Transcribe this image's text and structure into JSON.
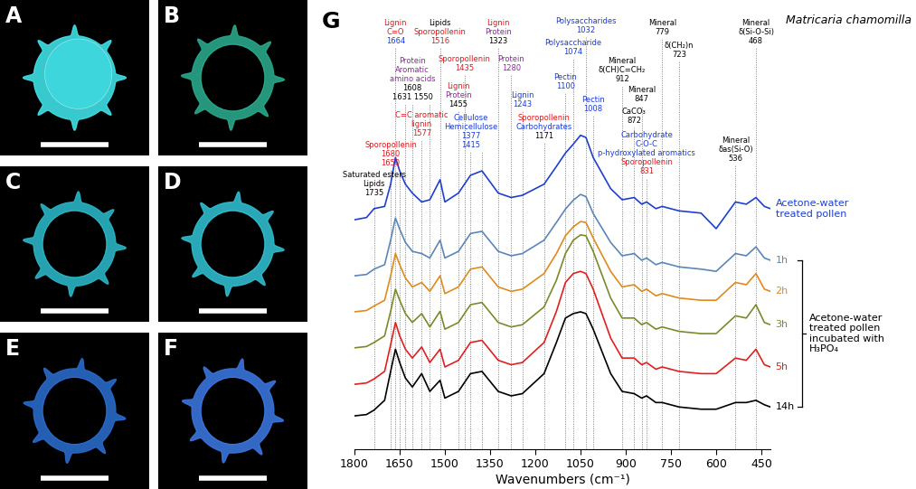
{
  "panels": {
    "labels": [
      "A",
      "B",
      "C",
      "D",
      "E",
      "F"
    ],
    "colors": [
      "#3fe0e6",
      "#2aa88a",
      "#2ab4c4",
      "#30bccc",
      "#2a6ac8",
      "#3a74dc"
    ]
  },
  "chart_data": {
    "type": "line",
    "panel_label": "G",
    "title": "Matricaria chamomilla",
    "xlabel": "Wavenumbers (cm⁻¹)",
    "xlim": [
      1800,
      420
    ],
    "xticks": [
      1800,
      1650,
      1500,
      1350,
      1200,
      1050,
      900,
      750,
      600,
      450
    ],
    "ylim": [
      0,
      10
    ],
    "tick_labels": "x",
    "x": [
      1800,
      1760,
      1735,
      1700,
      1680,
      1664,
      1650,
      1631,
      1608,
      1577,
      1550,
      1516,
      1500,
      1455,
      1435,
      1415,
      1377,
      1323,
      1280,
      1243,
      1171,
      1130,
      1100,
      1074,
      1050,
      1032,
      1008,
      950,
      912,
      872,
      847,
      831,
      800,
      779,
      723,
      650,
      600,
      536,
      500,
      468,
      440,
      420
    ],
    "series": [
      {
        "name": "Acetone-water treated pollen",
        "color": "#1f3fd0",
        "values": [
          5.16,
          5.21,
          5.41,
          5.46,
          5.96,
          6.56,
          6.26,
          5.96,
          5.76,
          5.56,
          5.61,
          6.06,
          5.56,
          5.76,
          5.96,
          6.16,
          6.26,
          5.76,
          5.66,
          5.71,
          5.96,
          6.36,
          6.66,
          6.86,
          7.06,
          7.01,
          6.56,
          5.86,
          5.61,
          5.66,
          5.51,
          5.56,
          5.41,
          5.46,
          5.36,
          5.31,
          4.96,
          5.56,
          5.51,
          5.66,
          5.46,
          5.41
        ]
      },
      {
        "name": "1h",
        "color": "#5b86b8",
        "values": [
          3.9,
          3.93,
          4.05,
          4.15,
          4.7,
          5.2,
          4.95,
          4.65,
          4.45,
          4.4,
          4.3,
          4.7,
          4.3,
          4.45,
          4.65,
          4.85,
          4.9,
          4.45,
          4.35,
          4.4,
          4.7,
          5.1,
          5.4,
          5.6,
          5.73,
          5.68,
          5.3,
          4.65,
          4.35,
          4.4,
          4.25,
          4.3,
          4.15,
          4.2,
          4.1,
          4.05,
          4.0,
          4.4,
          4.35,
          4.55,
          4.3,
          4.25
        ]
      },
      {
        "name": "2h",
        "color": "#e08a1e",
        "values": [
          3.09,
          3.12,
          3.22,
          3.35,
          3.9,
          4.4,
          4.15,
          3.85,
          3.65,
          3.75,
          3.55,
          3.9,
          3.5,
          3.65,
          3.85,
          4.05,
          4.1,
          3.65,
          3.55,
          3.6,
          3.95,
          4.4,
          4.8,
          5.0,
          5.12,
          5.1,
          4.75,
          4.0,
          3.65,
          3.7,
          3.55,
          3.6,
          3.45,
          3.5,
          3.4,
          3.35,
          3.35,
          3.75,
          3.7,
          3.95,
          3.6,
          3.55
        ]
      },
      {
        "name": "3h",
        "color": "#7a8a2a",
        "values": [
          2.28,
          2.31,
          2.4,
          2.55,
          3.1,
          3.6,
          3.35,
          3.05,
          2.85,
          3.05,
          2.75,
          3.1,
          2.7,
          2.85,
          3.05,
          3.25,
          3.3,
          2.85,
          2.75,
          2.8,
          3.2,
          3.8,
          4.4,
          4.7,
          4.82,
          4.8,
          4.45,
          3.4,
          2.95,
          2.95,
          2.8,
          2.85,
          2.7,
          2.75,
          2.65,
          2.6,
          2.6,
          3.0,
          2.95,
          3.25,
          2.85,
          2.8
        ]
      },
      {
        "name": "5h",
        "color": "#e02020",
        "values": [
          1.46,
          1.49,
          1.58,
          1.75,
          2.35,
          2.85,
          2.55,
          2.25,
          2.05,
          2.3,
          1.95,
          2.25,
          1.85,
          2.0,
          2.2,
          2.4,
          2.45,
          2.0,
          1.9,
          1.95,
          2.4,
          3.1,
          3.75,
          3.95,
          4.0,
          3.95,
          3.6,
          2.5,
          2.05,
          2.05,
          1.9,
          1.95,
          1.8,
          1.85,
          1.75,
          1.7,
          1.7,
          2.05,
          2.0,
          2.25,
          1.9,
          1.85
        ]
      },
      {
        "name": "14h",
        "color": "#000000",
        "values": [
          0.75,
          0.78,
          0.88,
          1.1,
          1.75,
          2.25,
          1.95,
          1.6,
          1.4,
          1.7,
          1.3,
          1.55,
          1.15,
          1.3,
          1.5,
          1.7,
          1.75,
          1.3,
          1.2,
          1.25,
          1.7,
          2.4,
          2.95,
          3.05,
          3.09,
          3.05,
          2.7,
          1.7,
          1.3,
          1.25,
          1.15,
          1.2,
          1.05,
          1.05,
          0.95,
          0.9,
          0.9,
          1.05,
          1.05,
          1.1,
          1.0,
          0.95
        ]
      }
    ],
    "group_label": "Acetone-water treated pollen incubated with H₃PO₄",
    "annotations": [
      {
        "wavenumbers": [
          1735
        ],
        "lines": [
          "Saturated esters",
          "Lipids",
          "1735"
        ],
        "colors": [
          "#000000",
          "#000000",
          "#000000"
        ]
      },
      {
        "wavenumbers": [
          1680,
          1650
        ],
        "lines": [
          "Sporopollenin",
          "1680",
          "1650"
        ],
        "colors": [
          "#e8141a",
          "#e8141a",
          "#e8141a"
        ]
      },
      {
        "wavenumbers": [
          1664
        ],
        "lines": [
          "Lignin",
          "C=O",
          "1664"
        ],
        "colors": [
          "#e8141a",
          "#e8141a",
          "#1a3adb"
        ]
      },
      {
        "wavenumbers": [
          1608,
          1631,
          1550
        ],
        "lines": [
          "Protein",
          "Aromatic",
          "amino acids",
          "1608",
          "1631 1550"
        ],
        "colors": [
          "#8b2a9b",
          "#8b2a9b",
          "#8b2a9b",
          "#000000",
          "#000000"
        ]
      },
      {
        "wavenumbers": [
          1577
        ],
        "lines": [
          "C=C aromatic",
          "lignin",
          "1577"
        ],
        "colors": [
          "#e8141a",
          "#e8141a",
          "#e8141a"
        ]
      },
      {
        "wavenumbers": [
          1516
        ],
        "lines": [
          "Lipids",
          "Sporopollenin",
          "1516"
        ],
        "colors": [
          "#000000",
          "#e8141a",
          "#e8141a"
        ]
      },
      {
        "wavenumbers": [
          1455
        ],
        "lines": [
          "Lignin",
          "Protein",
          "1455"
        ],
        "colors": [
          "#e8141a",
          "#8b2a9b",
          "#000000"
        ]
      },
      {
        "wavenumbers": [
          1435
        ],
        "lines": [
          "Sporopollenin",
          "1435"
        ],
        "colors": [
          "#e8141a",
          "#e8141a"
        ]
      },
      {
        "wavenumbers": [
          1415,
          1377
        ],
        "lines": [
          "Cellulose",
          "Hemicellulose",
          "1377",
          "1415"
        ],
        "colors": [
          "#1a3adb",
          "#1a3adb",
          "#1a3adb",
          "#1a3adb"
        ]
      },
      {
        "wavenumbers": [
          1323
        ],
        "lines": [
          "Lignin",
          "Protein",
          "1323"
        ],
        "colors": [
          "#e8141a",
          "#8b2a9b",
          "#000000"
        ]
      },
      {
        "wavenumbers": [
          1280
        ],
        "lines": [
          "Protein",
          "1280"
        ],
        "colors": [
          "#8b2a9b",
          "#8b2a9b"
        ]
      },
      {
        "wavenumbers": [
          1243
        ],
        "lines": [
          "Lignin",
          "1243"
        ],
        "colors": [
          "#1a3adb",
          "#1a3adb"
        ]
      },
      {
        "wavenumbers": [
          1171
        ],
        "lines": [
          "Sporopollenin",
          "Carbohydrates",
          "1171"
        ],
        "colors": [
          "#e8141a",
          "#1a3adb",
          "#000000"
        ]
      },
      {
        "wavenumbers": [
          1032
        ],
        "lines": [
          "Polysaccharides",
          "1032"
        ],
        "colors": [
          "#1a3adb",
          "#1a3adb"
        ]
      },
      {
        "wavenumbers": [
          1074
        ],
        "lines": [
          "Polysaccharide",
          "1074"
        ],
        "colors": [
          "#1a3adb",
          "#1a3adb"
        ]
      },
      {
        "wavenumbers": [
          1100
        ],
        "lines": [
          "Pectin",
          "1100"
        ],
        "colors": [
          "#1a3adb",
          "#1a3adb"
        ]
      },
      {
        "wavenumbers": [
          1008
        ],
        "lines": [
          "Pectin",
          "1008"
        ],
        "colors": [
          "#1a3adb",
          "#1a3adb"
        ]
      },
      {
        "wavenumbers": [
          912
        ],
        "lines": [
          "Mineral",
          "δ(CH)C=CH₂",
          "912"
        ],
        "colors": [
          "#000000",
          "#000000",
          "#000000"
        ]
      },
      {
        "wavenumbers": [
          847
        ],
        "lines": [
          "Mineral",
          "847"
        ],
        "colors": [
          "#000000",
          "#000000"
        ]
      },
      {
        "wavenumbers": [
          872
        ],
        "lines": [
          "CaCO₃",
          "872"
        ],
        "colors": [
          "#000000",
          "#000000"
        ]
      },
      {
        "wavenumbers": [
          779
        ],
        "lines": [
          "Mineral",
          "779"
        ],
        "colors": [
          "#000000",
          "#000000"
        ]
      },
      {
        "wavenumbers": [
          723
        ],
        "lines": [
          "δ(CH₂)n",
          "723"
        ],
        "colors": [
          "#000000",
          "#000000"
        ]
      },
      {
        "wavenumbers": [
          831
        ],
        "lines": [
          "Carbohydrate",
          "C-O-C",
          "p-hydroxylated aromatics",
          "Sporopollenin",
          "831"
        ],
        "colors": [
          "#1a3adb",
          "#1a3adb",
          "#1a3adb",
          "#e8141a",
          "#e8141a"
        ]
      },
      {
        "wavenumbers": [
          468
        ],
        "lines": [
          "Mineral",
          "δ(Si-O-Si)",
          "468"
        ],
        "colors": [
          "#000000",
          "#000000",
          "#000000"
        ]
      },
      {
        "wavenumbers": [
          536
        ],
        "lines": [
          "Mineral",
          "δas(Si-O)",
          "536"
        ],
        "colors": [
          "#000000",
          "#000000",
          "#000000"
        ]
      }
    ]
  }
}
